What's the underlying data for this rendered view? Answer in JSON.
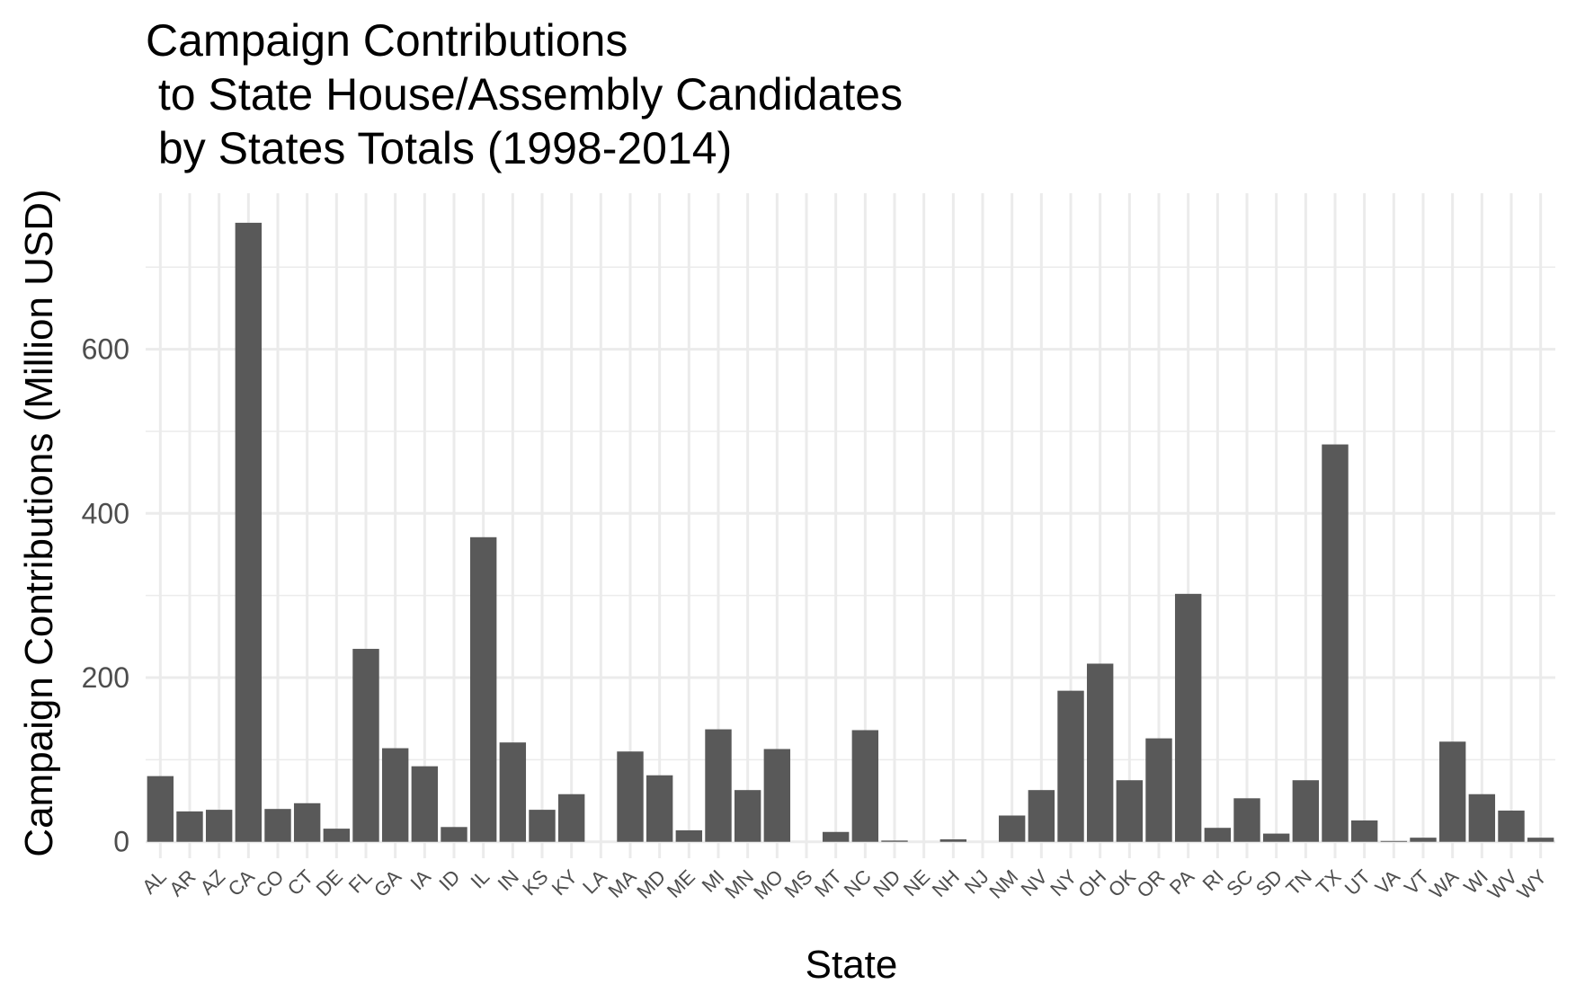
{
  "chart_data": {
    "type": "bar",
    "title_lines": [
      "Campaign Contributions",
      " to State House/Assembly Candidates",
      " by States Totals (1998-2014)"
    ],
    "xlabel": "State",
    "ylabel": "Campaign Contributions (Million USD)",
    "categories": [
      "AL",
      "AR",
      "AZ",
      "CA",
      "CO",
      "CT",
      "DE",
      "FL",
      "GA",
      "IA",
      "ID",
      "IL",
      "IN",
      "KS",
      "KY",
      "LA",
      "MA",
      "MD",
      "ME",
      "MI",
      "MN",
      "MO",
      "MS",
      "MT",
      "NC",
      "ND",
      "NE",
      "NH",
      "NJ",
      "NM",
      "NV",
      "NY",
      "OH",
      "OK",
      "OR",
      "PA",
      "RI",
      "SC",
      "SD",
      "TN",
      "TX",
      "UT",
      "VA",
      "VT",
      "WA",
      "WI",
      "WV",
      "WY"
    ],
    "values": [
      80,
      37,
      39,
      754,
      40,
      47,
      16,
      235,
      114,
      92,
      18,
      371,
      121,
      39,
      58,
      0,
      110,
      81,
      14,
      137,
      63,
      113,
      0,
      12,
      136,
      1.5,
      0,
      3,
      0,
      32,
      63,
      184,
      217,
      75,
      126,
      302,
      17,
      53,
      10,
      75,
      484,
      26,
      1,
      5,
      122,
      58,
      38,
      5
    ],
    "yticks": [
      0,
      200,
      400,
      600
    ],
    "ylim": [
      -20,
      790
    ],
    "grid": true,
    "legend": "none",
    "bar_color": "#595959",
    "grid_color": "#ebebeb"
  }
}
